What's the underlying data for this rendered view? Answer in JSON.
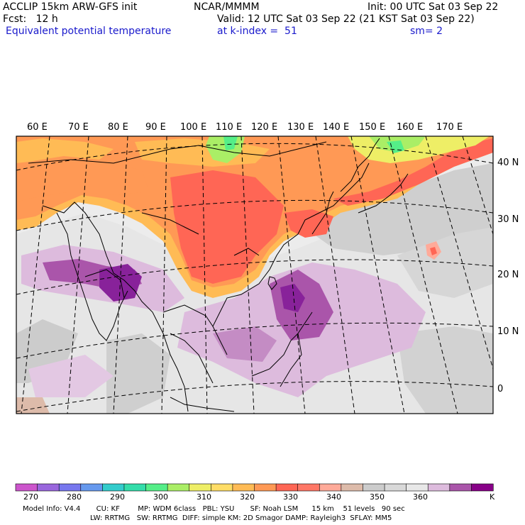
{
  "header": {
    "model": "ACCLIP 15km ARW-GFS init",
    "fcst": "Fcst:   12 h",
    "org": "NCAR/MMMM",
    "init": "Init: 00 UTC Sat 03 Sep 22",
    "valid": "Valid: 12 UTC Sat 03 Sep 22 (21 KST Sat 03 Sep 22)",
    "field": "Equivalent potential temperature",
    "level": "at k-index =  51",
    "smooth": "sm= 2"
  },
  "map": {
    "lon_labels": [
      "60 E",
      "70 E",
      "80 E",
      "90 E",
      "100 E",
      "110 E",
      "120 E",
      "130 E",
      "140 E",
      "150 E",
      "160 E",
      "170 E"
    ],
    "lat_labels": [
      "40 N",
      "30 N",
      "20 N",
      "10 N",
      "0"
    ]
  },
  "colorbar": {
    "colors": [
      "#cc55cc",
      "#9966dd",
      "#7777ee",
      "#6699ee",
      "#33cccc",
      "#33ddaa",
      "#55ee88",
      "#aaee66",
      "#eeee66",
      "#ffdd66",
      "#ffbb55",
      "#ff9955",
      "#ff6655",
      "#ff7766",
      "#ffaa99",
      "#ddbbaa",
      "#cccccc",
      "#d9d9d9",
      "#e8e8e8",
      "#ddbbdd",
      "#aa55aa",
      "#880088"
    ],
    "labels": [
      "270",
      "280",
      "290",
      "300",
      "310",
      "320",
      "330",
      "340",
      "350",
      "360"
    ],
    "unit": "K"
  },
  "footer": {
    "line1": "Model Info: V4.4       CU: KF        MP: WDM 6class   PBL: YSU       SF: Noah LSM      15 km    51 levels   90 sec",
    "line2": "LW: RRTMG   SW: RRTMG  DIFF: simple KM: 2D Smagor DAMP: Rayleigh3  SFLAY: MM5"
  }
}
